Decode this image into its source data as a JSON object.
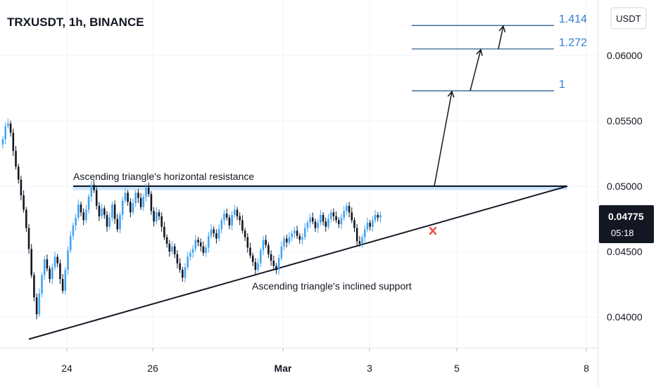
{
  "chart_data": {
    "type": "candlestick",
    "title": "TRXUSDT, 1h, BINANCE",
    "currency": "USDT",
    "y_ticks": [
      "0.06000",
      "0.05500",
      "0.05000",
      "0.04500",
      "0.04000"
    ],
    "y_tick_values": [
      0.06,
      0.055,
      0.05,
      0.045,
      0.04
    ],
    "ylim": [
      0.037,
      0.064
    ],
    "x_ticks": [
      "24",
      "26",
      "Mar",
      "3",
      "5",
      "8"
    ],
    "current_price": "0.04775",
    "countdown": "05:18",
    "resistance_level": 0.05,
    "resistance_zone": [
      0.0497,
      0.0501
    ],
    "support_line": {
      "start_price": 0.0383,
      "end_price": 0.05
    },
    "fib_levels": [
      {
        "label": "1.414",
        "value": 0.0623
      },
      {
        "label": "1.272",
        "value": 0.0605
      },
      {
        "label": "1",
        "value": 0.0573
      }
    ],
    "annotations": {
      "resistance": "Ascending triangle's horizontal resistance",
      "support": "Ascending triangle's inclined support"
    },
    "closes": [
      0.0536,
      0.0546,
      0.0548,
      0.0541,
      0.0527,
      0.0515,
      0.0505,
      0.0493,
      0.0482,
      0.0468,
      0.0452,
      0.0432,
      0.0415,
      0.0402,
      0.0418,
      0.0432,
      0.0444,
      0.0437,
      0.0429,
      0.0438,
      0.0446,
      0.0441,
      0.0429,
      0.042,
      0.0436,
      0.0451,
      0.0462,
      0.047,
      0.0476,
      0.0486,
      0.048,
      0.0474,
      0.0482,
      0.0492,
      0.0501,
      0.0497,
      0.0485,
      0.0477,
      0.0483,
      0.0478,
      0.0469,
      0.0476,
      0.0486,
      0.0475,
      0.0467,
      0.0478,
      0.0489,
      0.0495,
      0.0488,
      0.048,
      0.0487,
      0.0495,
      0.0491,
      0.0484,
      0.0492,
      0.0499,
      0.0494,
      0.0481,
      0.0473,
      0.048,
      0.0477,
      0.0469,
      0.0461,
      0.0456,
      0.045,
      0.0454,
      0.0448,
      0.0441,
      0.0436,
      0.043,
      0.0438,
      0.0446,
      0.0449,
      0.0452,
      0.0459,
      0.0457,
      0.0454,
      0.0449,
      0.0453,
      0.0462,
      0.0467,
      0.0464,
      0.046,
      0.0467,
      0.0474,
      0.0479,
      0.0476,
      0.047,
      0.0478,
      0.0482,
      0.0477,
      0.0474,
      0.0466,
      0.0461,
      0.0453,
      0.0447,
      0.0442,
      0.0436,
      0.0441,
      0.0451,
      0.0459,
      0.0455,
      0.0448,
      0.0443,
      0.0439,
      0.0436,
      0.0445,
      0.0454,
      0.046,
      0.0457,
      0.0461,
      0.0464,
      0.0466,
      0.0462,
      0.0459,
      0.0461,
      0.0468,
      0.0472,
      0.0476,
      0.0473,
      0.0468,
      0.0472,
      0.0478,
      0.0473,
      0.0469,
      0.0475,
      0.048,
      0.0477,
      0.0474,
      0.0471,
      0.0476,
      0.0481,
      0.0485,
      0.048,
      0.0474,
      0.0468,
      0.0458,
      0.0456,
      0.0461,
      0.0467,
      0.0472,
      0.0469,
      0.0474,
      0.0478,
      0.0476,
      0.0478
    ]
  }
}
